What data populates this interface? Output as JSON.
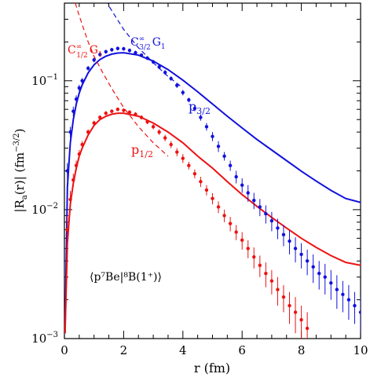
{
  "chart_data": {
    "type": "scatter",
    "title": "",
    "xlabel": "r  (fm)",
    "ylabel": "|R",
    "ylabel_sub": "a",
    "ylabel_tail": "(r)|  (fm",
    "ylabel_sup": "−3/2",
    "ylabel_end": ")",
    "yscale": "log",
    "xlim": [
      0,
      10
    ],
    "ylim": [
      0.001,
      0.4
    ],
    "grid": false,
    "legend": "none",
    "x_ticks": [
      "0",
      "2",
      "4",
      "6",
      "8",
      "10"
    ],
    "x_tick_values": [
      0,
      2,
      4,
      6,
      8,
      10
    ],
    "y_ticks": [
      {
        "base": "10",
        "exp": "−1",
        "value": 0.1
      },
      {
        "base": "10",
        "exp": "−2",
        "value": 0.01
      },
      {
        "base": "10",
        "exp": "−3",
        "value": 0.001
      }
    ],
    "annotation": {
      "text": "⟨p⁷Be|⁸B(1⁺)⟩",
      "color": "#000000"
    },
    "series": [
      {
        "label_main": "p",
        "label_sub": "3/2",
        "color": "#1111dd",
        "curve": {
          "x": [
            0.02,
            0.1,
            0.2,
            0.3,
            0.4,
            0.5,
            0.6,
            0.8,
            1.0,
            1.2,
            1.4,
            1.6,
            1.8,
            2.0,
            2.5,
            3.0,
            3.5,
            4.0,
            4.5,
            5.0,
            5.5,
            6.0,
            6.5,
            7.0,
            7.5,
            8.0,
            8.5,
            9.0,
            9.5,
            10.0
          ],
          "y": [
            0.0011,
            0.015,
            0.033,
            0.05,
            0.066,
            0.08,
            0.093,
            0.115,
            0.133,
            0.146,
            0.155,
            0.161,
            0.164,
            0.165,
            0.158,
            0.142,
            0.122,
            0.101,
            0.082,
            0.066,
            0.053,
            0.043,
            0.035,
            0.029,
            0.024,
            0.0199,
            0.0167,
            0.0141,
            0.0122,
            0.0114
          ]
        },
        "asymptotic": {
          "label_main": "C",
          "label_sup": "∞",
          "label_sub": "3/2",
          "label_tail": "G",
          "label_tail_sub": "1",
          "x": [
            1.2,
            1.5,
            2.0,
            2.5,
            3.0,
            3.5,
            4.0
          ],
          "y": [
            0.55,
            0.38,
            0.25,
            0.18,
            0.138,
            0.108,
            0.088
          ]
        },
        "points": [
          {
            "x": 0.1,
            "y": 0.02,
            "err": 0.003
          },
          {
            "x": 0.2,
            "y": 0.04,
            "err": 0.004
          },
          {
            "x": 0.3,
            "y": 0.058,
            "err": 0.005
          },
          {
            "x": 0.4,
            "y": 0.072,
            "err": 0.005
          },
          {
            "x": 0.5,
            "y": 0.088,
            "err": 0.005
          },
          {
            "x": 0.6,
            "y": 0.1,
            "err": 0.005
          },
          {
            "x": 0.8,
            "y": 0.125,
            "err": 0.005
          },
          {
            "x": 1.0,
            "y": 0.145,
            "err": 0.006
          },
          {
            "x": 1.2,
            "y": 0.16,
            "err": 0.006
          },
          {
            "x": 1.4,
            "y": 0.168,
            "err": 0.006
          },
          {
            "x": 1.6,
            "y": 0.174,
            "err": 0.006
          },
          {
            "x": 1.8,
            "y": 0.178,
            "err": 0.006
          },
          {
            "x": 2.0,
            "y": 0.177,
            "err": 0.006
          },
          {
            "x": 2.2,
            "y": 0.172,
            "err": 0.006
          },
          {
            "x": 2.4,
            "y": 0.165,
            "err": 0.006
          },
          {
            "x": 2.6,
            "y": 0.158,
            "err": 0.005
          },
          {
            "x": 2.8,
            "y": 0.15,
            "err": 0.005
          },
          {
            "x": 3.0,
            "y": 0.14,
            "err": 0.005
          },
          {
            "x": 3.2,
            "y": 0.128,
            "err": 0.005
          },
          {
            "x": 3.4,
            "y": 0.116,
            "err": 0.005
          },
          {
            "x": 3.6,
            "y": 0.104,
            "err": 0.004
          },
          {
            "x": 3.8,
            "y": 0.092,
            "err": 0.004
          },
          {
            "x": 4.0,
            "y": 0.081,
            "err": 0.004
          },
          {
            "x": 4.2,
            "y": 0.071,
            "err": 0.003
          },
          {
            "x": 4.4,
            "y": 0.061,
            "err": 0.003
          },
          {
            "x": 4.6,
            "y": 0.052,
            "err": 0.003
          },
          {
            "x": 4.8,
            "y": 0.044,
            "err": 0.003
          },
          {
            "x": 5.0,
            "y": 0.037,
            "err": 0.003
          },
          {
            "x": 5.2,
            "y": 0.031,
            "err": 0.003
          },
          {
            "x": 5.4,
            "y": 0.026,
            "err": 0.002
          },
          {
            "x": 5.6,
            "y": 0.022,
            "err": 0.002
          },
          {
            "x": 5.8,
            "y": 0.018,
            "err": 0.002
          },
          {
            "x": 6.0,
            "y": 0.0155,
            "err": 0.002
          },
          {
            "x": 6.2,
            "y": 0.0135,
            "err": 0.002
          },
          {
            "x": 6.4,
            "y": 0.0118,
            "err": 0.0017
          },
          {
            "x": 6.6,
            "y": 0.0105,
            "err": 0.0016
          },
          {
            "x": 6.8,
            "y": 0.0093,
            "err": 0.0015
          },
          {
            "x": 7.0,
            "y": 0.0082,
            "err": 0.0014
          },
          {
            "x": 7.2,
            "y": 0.0072,
            "err": 0.0013
          },
          {
            "x": 7.4,
            "y": 0.0064,
            "err": 0.0012
          },
          {
            "x": 7.6,
            "y": 0.0057,
            "err": 0.0012
          },
          {
            "x": 7.8,
            "y": 0.005,
            "err": 0.0011
          },
          {
            "x": 8.0,
            "y": 0.0045,
            "err": 0.001
          },
          {
            "x": 8.2,
            "y": 0.004,
            "err": 0.0009
          },
          {
            "x": 8.4,
            "y": 0.0036,
            "err": 0.0009
          },
          {
            "x": 8.6,
            "y": 0.0032,
            "err": 0.0008
          },
          {
            "x": 8.8,
            "y": 0.003,
            "err": 0.0008
          },
          {
            "x": 9.0,
            "y": 0.0027,
            "err": 0.0007
          },
          {
            "x": 9.2,
            "y": 0.0024,
            "err": 0.0007
          },
          {
            "x": 9.4,
            "y": 0.0022,
            "err": 0.0006
          },
          {
            "x": 9.6,
            "y": 0.002,
            "err": 0.0006
          },
          {
            "x": 9.8,
            "y": 0.0018,
            "err": 0.0005
          },
          {
            "x": 10.0,
            "y": 0.0016,
            "err": 0.0005
          }
        ]
      },
      {
        "label_main": "p",
        "label_sub": "1/2",
        "color": "#ee1111",
        "curve": {
          "x": [
            0.02,
            0.1,
            0.2,
            0.3,
            0.4,
            0.5,
            0.6,
            0.8,
            1.0,
            1.2,
            1.4,
            1.6,
            1.8,
            2.0,
            2.5,
            3.0,
            3.5,
            4.0,
            4.5,
            5.0,
            5.5,
            6.0,
            6.5,
            7.0,
            7.5,
            8.0,
            8.5,
            9.0,
            9.5,
            10.0
          ],
          "y": [
            0.0011,
            0.0055,
            0.011,
            0.016,
            0.021,
            0.026,
            0.03,
            0.038,
            0.045,
            0.05,
            0.053,
            0.055,
            0.056,
            0.056,
            0.053,
            0.047,
            0.04,
            0.033,
            0.026,
            0.021,
            0.0165,
            0.0131,
            0.0106,
            0.0087,
            0.0072,
            0.006,
            0.0051,
            0.0044,
            0.0039,
            0.0037
          ]
        },
        "asymptotic": {
          "label_main": "C",
          "label_sup": "∞",
          "label_sub": "1/2",
          "label_tail": "G",
          "label_tail_sub": "1",
          "x": [
            0.15,
            0.3,
            0.5,
            0.8,
            1.0,
            1.3,
            1.6,
            2.0,
            2.5,
            3.0,
            3.5
          ],
          "y": [
            0.6,
            0.45,
            0.32,
            0.2,
            0.155,
            0.115,
            0.087,
            0.062,
            0.044,
            0.033,
            0.026
          ]
        },
        "points": [
          {
            "x": 0.1,
            "y": 0.007,
            "err": 0.002
          },
          {
            "x": 0.2,
            "y": 0.012,
            "err": 0.002
          },
          {
            "x": 0.3,
            "y": 0.017,
            "err": 0.002
          },
          {
            "x": 0.4,
            "y": 0.022,
            "err": 0.002
          },
          {
            "x": 0.5,
            "y": 0.027,
            "err": 0.002
          },
          {
            "x": 0.6,
            "y": 0.032,
            "err": 0.002
          },
          {
            "x": 0.8,
            "y": 0.04,
            "err": 0.002
          },
          {
            "x": 1.0,
            "y": 0.047,
            "err": 0.002
          },
          {
            "x": 1.2,
            "y": 0.052,
            "err": 0.002
          },
          {
            "x": 1.4,
            "y": 0.056,
            "err": 0.002
          },
          {
            "x": 1.6,
            "y": 0.058,
            "err": 0.002
          },
          {
            "x": 1.8,
            "y": 0.06,
            "err": 0.002
          },
          {
            "x": 2.0,
            "y": 0.059,
            "err": 0.002
          },
          {
            "x": 2.2,
            "y": 0.057,
            "err": 0.002
          },
          {
            "x": 2.4,
            "y": 0.055,
            "err": 0.002
          },
          {
            "x": 2.6,
            "y": 0.052,
            "err": 0.002
          },
          {
            "x": 2.8,
            "y": 0.048,
            "err": 0.002
          },
          {
            "x": 3.0,
            "y": 0.044,
            "err": 0.002
          },
          {
            "x": 3.2,
            "y": 0.04,
            "err": 0.002
          },
          {
            "x": 3.4,
            "y": 0.036,
            "err": 0.002
          },
          {
            "x": 3.6,
            "y": 0.032,
            "err": 0.002
          },
          {
            "x": 3.8,
            "y": 0.028,
            "err": 0.002
          },
          {
            "x": 4.0,
            "y": 0.025,
            "err": 0.002
          },
          {
            "x": 4.2,
            "y": 0.022,
            "err": 0.0015
          },
          {
            "x": 4.4,
            "y": 0.019,
            "err": 0.0015
          },
          {
            "x": 4.6,
            "y": 0.0165,
            "err": 0.0015
          },
          {
            "x": 4.8,
            "y": 0.0142,
            "err": 0.0013
          },
          {
            "x": 5.0,
            "y": 0.0122,
            "err": 0.0012
          },
          {
            "x": 5.2,
            "y": 0.0105,
            "err": 0.0011
          },
          {
            "x": 5.4,
            "y": 0.009,
            "err": 0.001
          },
          {
            "x": 5.6,
            "y": 0.0078,
            "err": 0.001
          },
          {
            "x": 5.8,
            "y": 0.0067,
            "err": 0.0009
          },
          {
            "x": 6.0,
            "y": 0.0058,
            "err": 0.0009
          },
          {
            "x": 6.2,
            "y": 0.005,
            "err": 0.0008
          },
          {
            "x": 6.4,
            "y": 0.0043,
            "err": 0.0008
          },
          {
            "x": 6.6,
            "y": 0.0037,
            "err": 0.0007
          },
          {
            "x": 6.8,
            "y": 0.0032,
            "err": 0.0007
          },
          {
            "x": 7.0,
            "y": 0.0028,
            "err": 0.0006
          },
          {
            "x": 7.2,
            "y": 0.0024,
            "err": 0.0006
          },
          {
            "x": 7.4,
            "y": 0.0021,
            "err": 0.0005
          },
          {
            "x": 7.6,
            "y": 0.0018,
            "err": 0.0005
          },
          {
            "x": 7.8,
            "y": 0.0016,
            "err": 0.0005
          },
          {
            "x": 8.0,
            "y": 0.0014,
            "err": 0.0004
          },
          {
            "x": 8.2,
            "y": 0.0012,
            "err": 0.0004
          }
        ]
      }
    ]
  }
}
